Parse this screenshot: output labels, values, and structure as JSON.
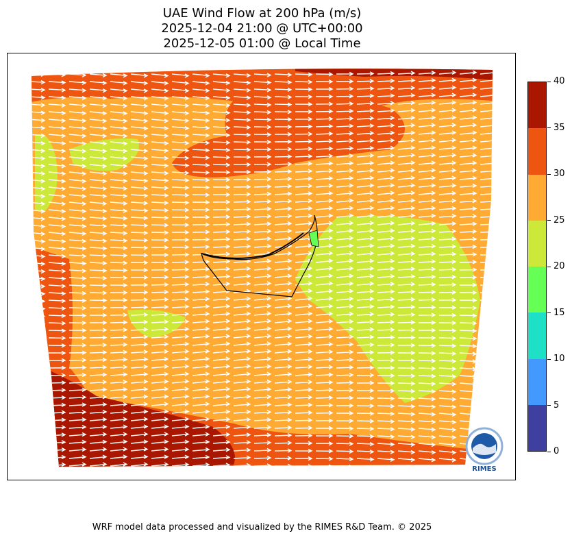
{
  "title": {
    "line1": "UAE Wind Flow at 200 hPa (m/s)",
    "line2": "2025-12-04 21:00 @ UTC+00:00",
    "line3": "2025-12-05 01:00 @ Local Time"
  },
  "colorbar": {
    "min": 0,
    "max": 40,
    "ticks": [
      "0",
      "5",
      "10",
      "15",
      "20",
      "25",
      "30",
      "35",
      "40"
    ],
    "levels": [
      {
        "from": 0,
        "to": 5,
        "color": "#3f3f9f"
      },
      {
        "from": 5,
        "to": 10,
        "color": "#4499ff"
      },
      {
        "from": 10,
        "to": 15,
        "color": "#1ee0c6"
      },
      {
        "from": 15,
        "to": 20,
        "color": "#66ff55"
      },
      {
        "from": 20,
        "to": 25,
        "color": "#cce838"
      },
      {
        "from": 25,
        "to": 30,
        "color": "#ffaa33"
      },
      {
        "from": 30,
        "to": 35,
        "color": "#ee5511"
      },
      {
        "from": 35,
        "to": 40,
        "color": "#aa1700"
      }
    ]
  },
  "map": {
    "wind_direction": "westerly",
    "region": "UAE"
  },
  "logo": {
    "text": "RIMES"
  },
  "footer": "WRF model data processed and visualized by the RIMES R&D Team. © 2025"
}
